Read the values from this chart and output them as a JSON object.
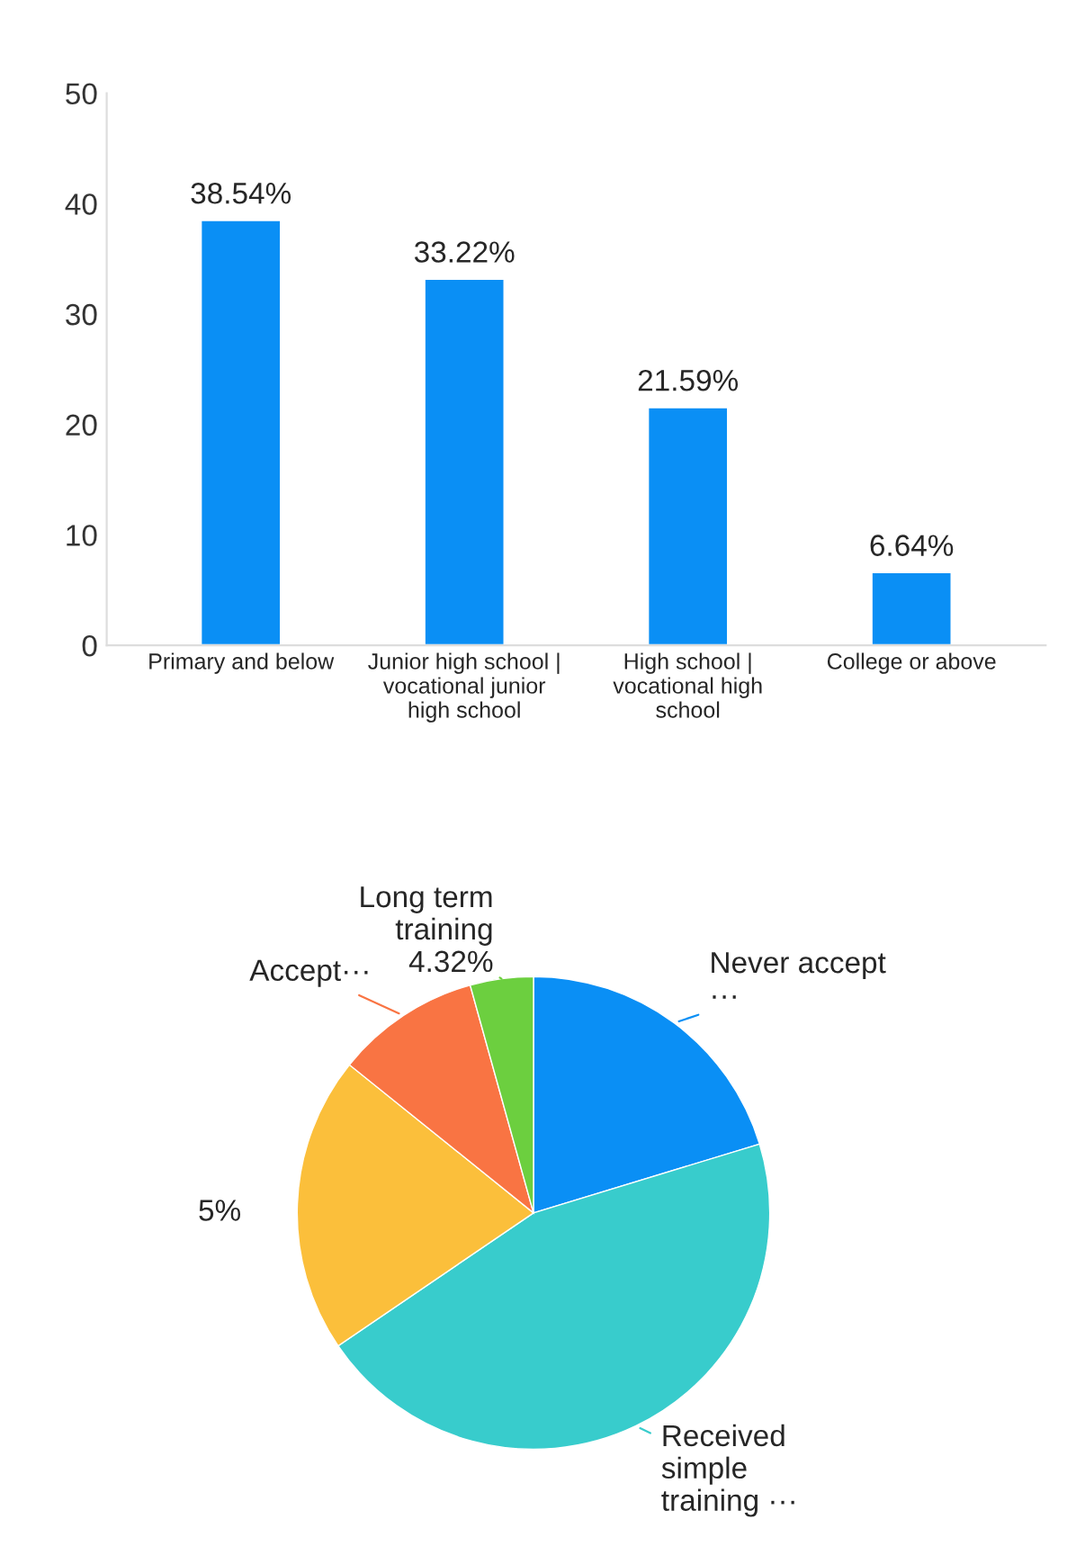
{
  "chart_data": [
    {
      "type": "bar",
      "categories": [
        "Primary and below",
        "Junior high school | vocational junior high school",
        "High school | vocational high school",
        "College or above"
      ],
      "values": [
        38.54,
        33.22,
        21.59,
        6.64
      ],
      "value_labels": [
        "38.54%",
        "33.22%",
        "21.59%",
        "6.64%"
      ],
      "color": "#0a8ff5",
      "ylim": [
        0,
        50
      ],
      "yticks": [
        0,
        10,
        20,
        30,
        40,
        50
      ],
      "grid": false,
      "legend": false
    },
    {
      "type": "pie",
      "categories": [
        "Never accept ···",
        "Received simple training ···",
        null,
        "Accept···",
        "Long term training"
      ],
      "values": [
        20.3,
        45.2,
        20.3,
        9.9,
        4.32
      ],
      "value_labels": [
        null,
        null,
        null,
        null,
        "4.32%"
      ],
      "colors": [
        "#0a8ff5",
        "#38cccc",
        "#fbbf3b",
        "#f97443",
        "#6ccf3f"
      ],
      "annotations": [
        "5%"
      ],
      "legend": false
    }
  ]
}
